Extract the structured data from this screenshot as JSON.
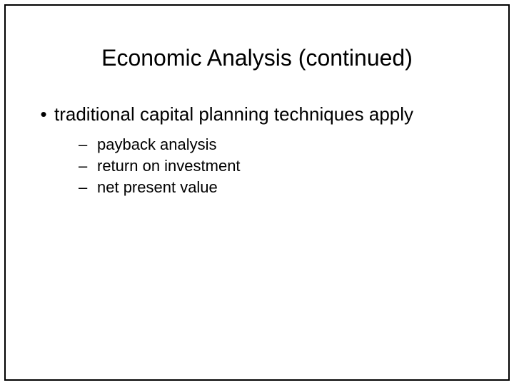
{
  "slide": {
    "title": "Economic Analysis (continued)",
    "background_color": "#ffffff",
    "border_color": "#000000",
    "title_fontsize": 32,
    "body_fontsize_l1": 26,
    "body_fontsize_l2": 22,
    "text_color": "#000000",
    "bullets": {
      "l1": {
        "marker": "•",
        "text": "traditional capital planning techniques apply"
      },
      "l2": [
        {
          "marker": "–",
          "text": "payback analysis"
        },
        {
          "marker": "–",
          "text": "return on investment"
        },
        {
          "marker": "–",
          "text": "net present value"
        }
      ]
    }
  }
}
